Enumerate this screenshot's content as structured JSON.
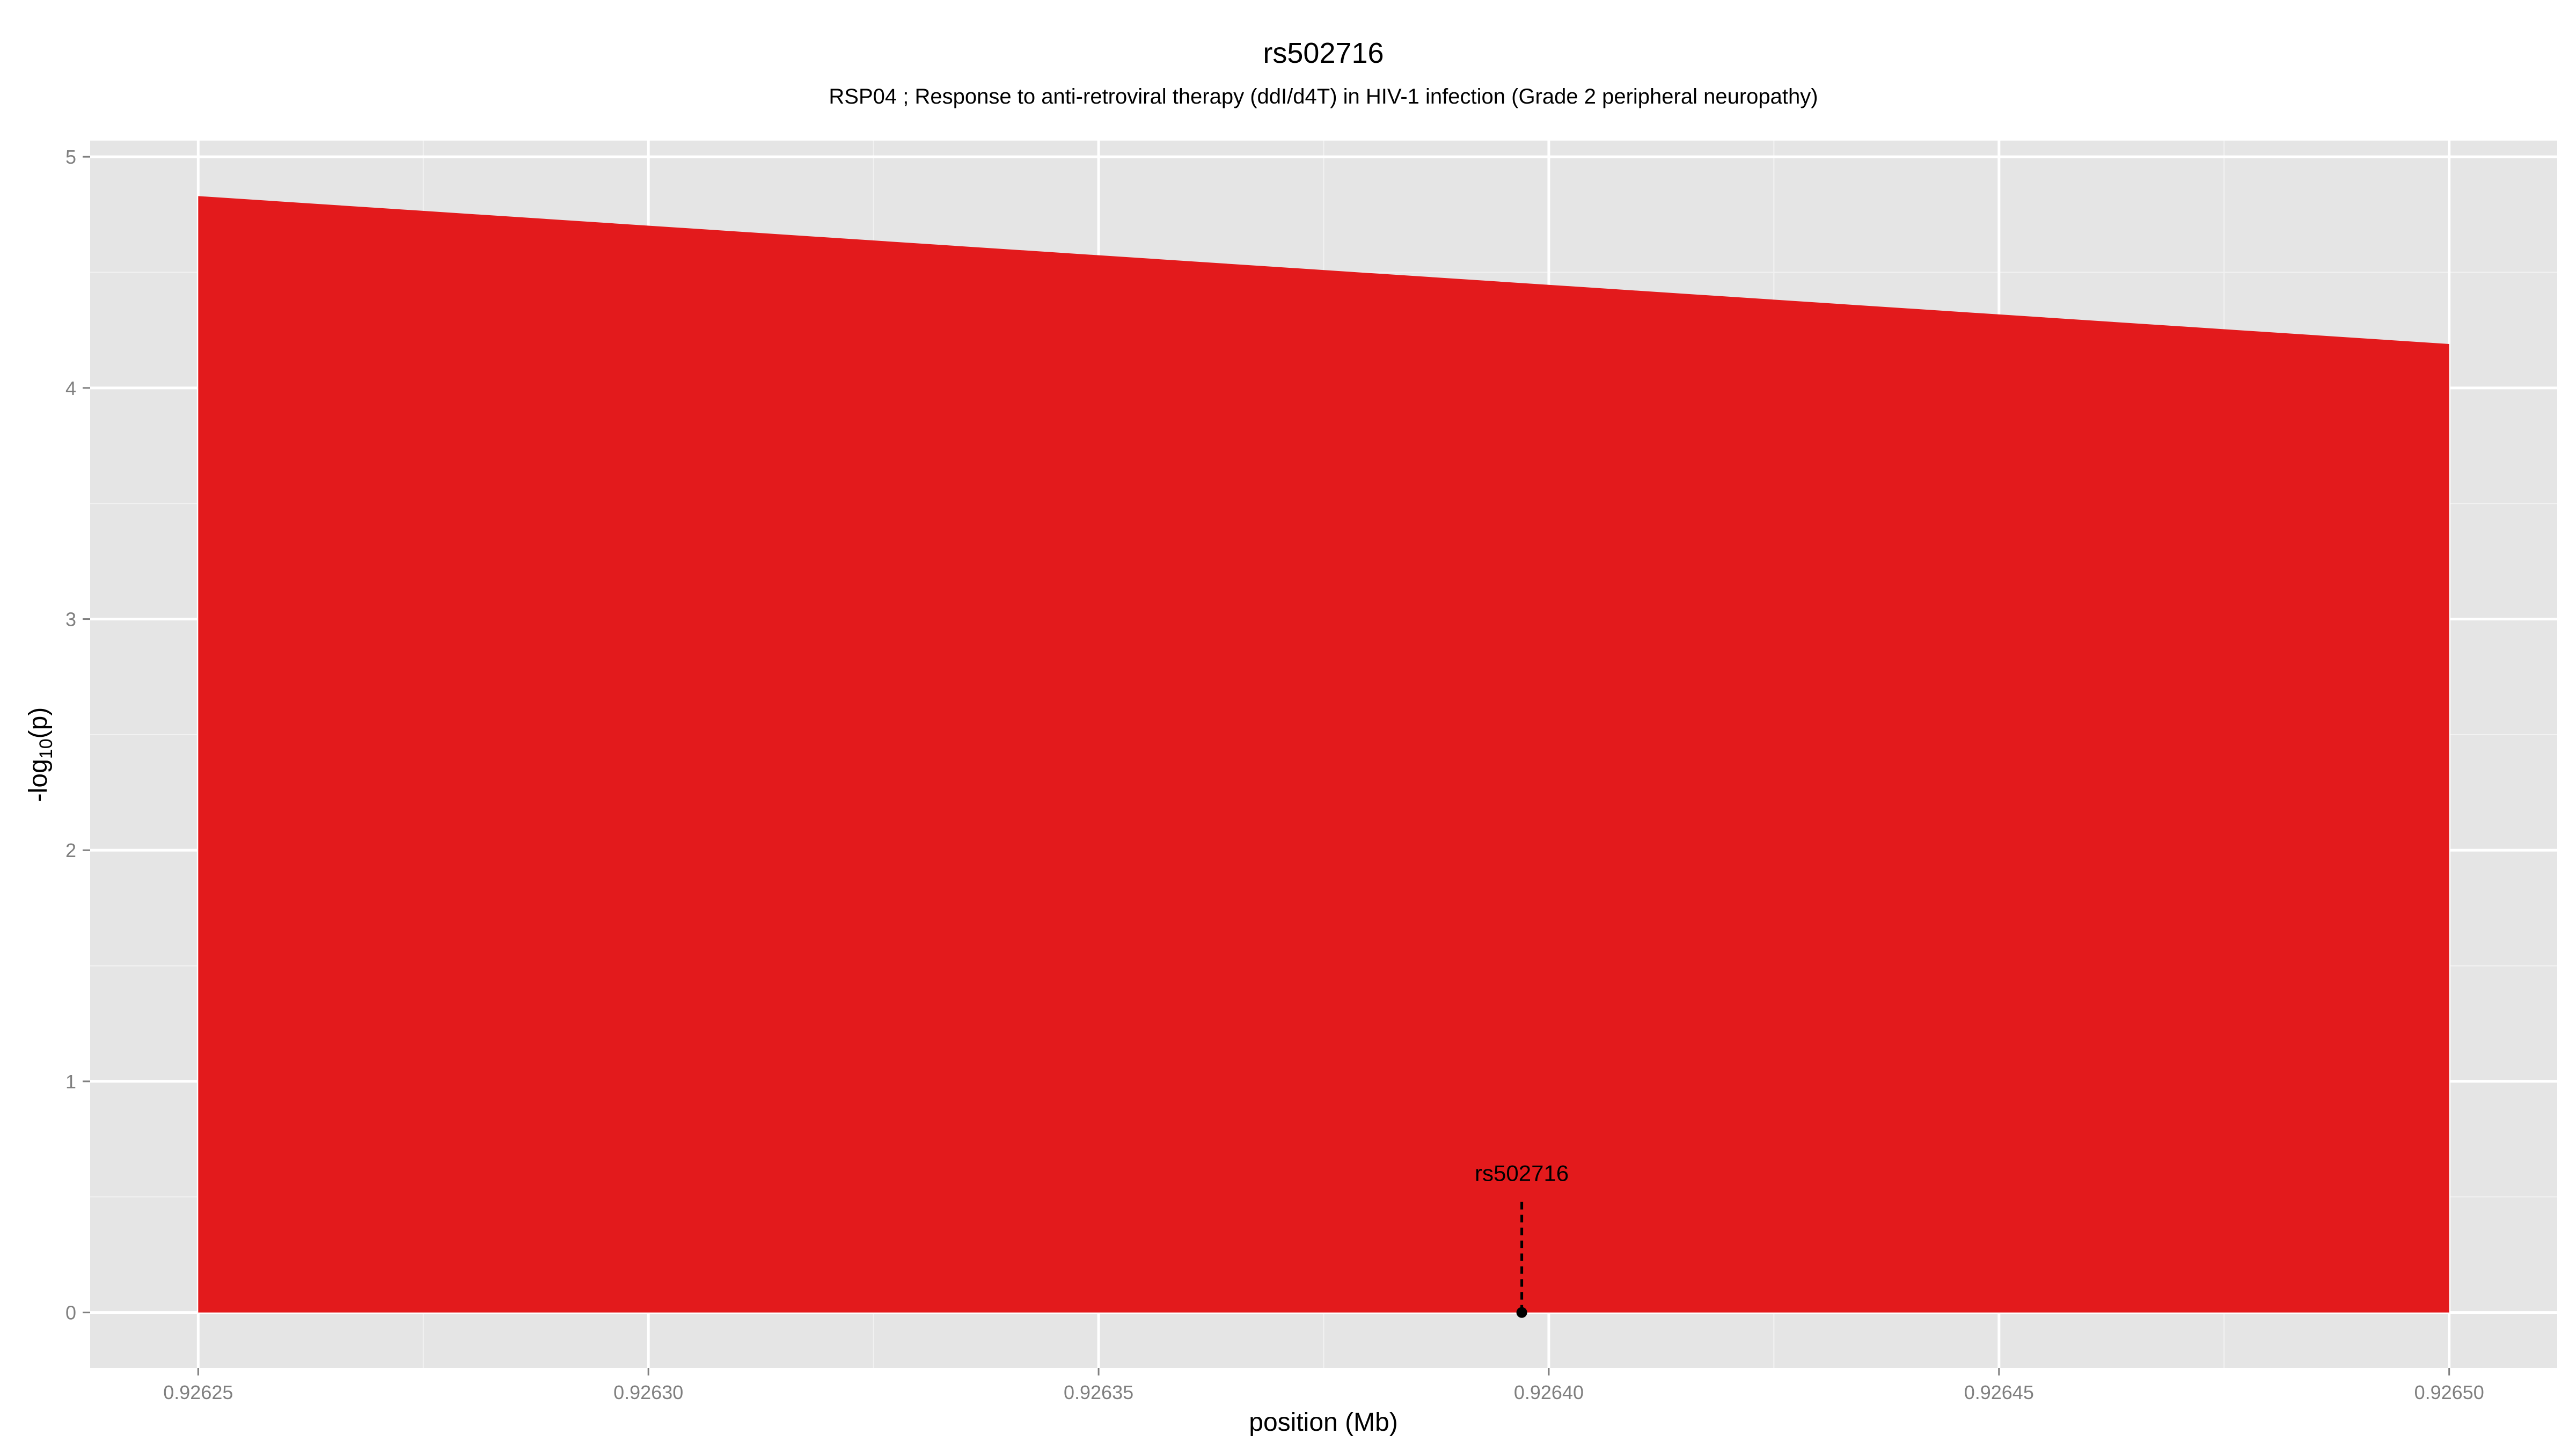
{
  "chart_data": {
    "type": "area",
    "title": "rs502716",
    "subtitle": "RSP04 ; Response to anti-retroviral therapy (ddI/d4T) in HIV-1 infection (Grade 2 peripheral neuropathy)",
    "xlabel": "position (Mb)",
    "ylabel": "-log10(p)",
    "ylabel_main": "-log",
    "ylabel_sub": "10",
    "ylabel_tail": "(p)",
    "xlim": [
      0.926238,
      0.926512
    ],
    "ylim": [
      -0.24,
      5.07
    ],
    "x_ticks": [
      0.92625,
      0.9263,
      0.92635,
      0.9264,
      0.92645,
      0.9265
    ],
    "x_tick_labels": [
      "0.92625",
      "0.92630",
      "0.92635",
      "0.92640",
      "0.92645",
      "0.92650"
    ],
    "y_ticks": [
      0,
      1,
      2,
      3,
      4,
      5
    ],
    "y_tick_labels": [
      "0",
      "1",
      "2",
      "3",
      "4",
      "5"
    ],
    "grid": true,
    "colors": {
      "area": "#e31a1c",
      "panel": "#e5e5e5",
      "grid": "#ffffff"
    },
    "series": [
      {
        "x": [
          0.92625,
          0.9265
        ],
        "y": [
          4.83,
          4.19
        ]
      }
    ],
    "annotations": [
      {
        "label": "rs502716",
        "x": 0.926397,
        "y": 0,
        "marker_top": 0.49
      }
    ]
  }
}
